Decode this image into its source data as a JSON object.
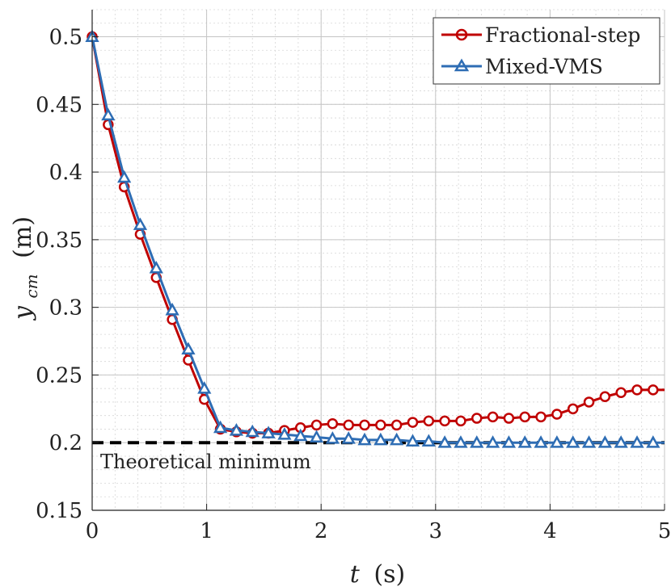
{
  "chart_data": {
    "type": "line",
    "xlabel_var": "t",
    "xlabel_unit": "(s)",
    "ylabel_var": "y",
    "ylabel_sub": "cm",
    "ylabel_unit": "(m)",
    "xlim": [
      0,
      5
    ],
    "ylim": [
      0.15,
      0.52
    ],
    "x_ticks": [
      "0",
      "1",
      "2",
      "3",
      "4",
      "5"
    ],
    "y_ticks": [
      "0.15",
      "0.2",
      "0.25",
      "0.3",
      "0.35",
      "0.4",
      "0.45",
      "0.5"
    ],
    "grid": true,
    "minor_grid": true,
    "legend_position": "top-right",
    "series": [
      {
        "name": "Fractional-step",
        "color": "#c00000",
        "marker": "circle",
        "x": [
          0,
          0.14,
          0.28,
          0.42,
          0.56,
          0.7,
          0.84,
          0.98,
          1.12,
          1.26,
          1.4,
          1.54,
          1.68,
          1.82,
          1.96,
          2.1,
          2.24,
          2.38,
          2.52,
          2.66,
          2.8,
          2.94,
          3.08,
          3.22,
          3.36,
          3.5,
          3.64,
          3.78,
          3.92,
          4.06,
          4.2,
          4.34,
          4.48,
          4.62,
          4.76,
          4.9
        ],
        "y": [
          0.5,
          0.435,
          0.389,
          0.354,
          0.322,
          0.291,
          0.261,
          0.232,
          0.21,
          0.208,
          0.207,
          0.207,
          0.209,
          0.211,
          0.213,
          0.214,
          0.213,
          0.213,
          0.213,
          0.213,
          0.215,
          0.216,
          0.216,
          0.216,
          0.218,
          0.219,
          0.218,
          0.219,
          0.219,
          0.221,
          0.225,
          0.23,
          0.234,
          0.237,
          0.239,
          0.239
        ]
      },
      {
        "name": "Mixed-VMS",
        "color": "#2e6db4",
        "marker": "triangle",
        "x": [
          0,
          0.14,
          0.28,
          0.42,
          0.56,
          0.7,
          0.84,
          0.98,
          1.12,
          1.26,
          1.4,
          1.54,
          1.68,
          1.82,
          1.96,
          2.1,
          2.24,
          2.38,
          2.52,
          2.66,
          2.8,
          2.94,
          3.08,
          3.22,
          3.36,
          3.5,
          3.64,
          3.78,
          3.92,
          4.06,
          4.2,
          4.34,
          4.48,
          4.62,
          4.76,
          4.9
        ],
        "y": [
          0.5,
          0.442,
          0.396,
          0.361,
          0.329,
          0.298,
          0.269,
          0.24,
          0.211,
          0.209,
          0.208,
          0.207,
          0.206,
          0.205,
          0.204,
          0.203,
          0.203,
          0.202,
          0.202,
          0.202,
          0.201,
          0.201,
          0.2,
          0.2,
          0.2,
          0.2,
          0.2,
          0.2,
          0.2,
          0.2,
          0.2,
          0.2,
          0.2,
          0.2,
          0.2,
          0.2
        ]
      }
    ],
    "reference_line": {
      "label": "Theoretical minimum",
      "y": 0.2,
      "color": "#000000"
    }
  }
}
